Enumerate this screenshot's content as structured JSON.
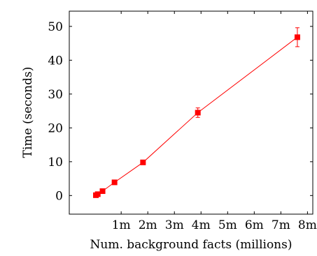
{
  "chart_data": {
    "type": "line",
    "title": "",
    "xlabel": "Num. background facts (millions)",
    "ylabel": "Time (seconds)",
    "xlim": [
      -0.95,
      8.2
    ],
    "ylim": [
      -5.5,
      54.5
    ],
    "x_ticks": [
      {
        "value": 1,
        "label": "1m"
      },
      {
        "value": 2,
        "label": "2m"
      },
      {
        "value": 3,
        "label": "3m"
      },
      {
        "value": 4,
        "label": "4m"
      },
      {
        "value": 5,
        "label": "5m"
      },
      {
        "value": 6,
        "label": "6m"
      },
      {
        "value": 7,
        "label": "7m"
      },
      {
        "value": 8,
        "label": "8m"
      }
    ],
    "y_ticks": [
      {
        "value": 0,
        "label": "0"
      },
      {
        "value": 10,
        "label": "10"
      },
      {
        "value": 20,
        "label": "20"
      },
      {
        "value": 30,
        "label": "30"
      },
      {
        "value": 40,
        "label": "40"
      },
      {
        "value": 50,
        "label": "50"
      }
    ],
    "grid": false,
    "legend": "none",
    "series": [
      {
        "color": "#ff0000",
        "marker": "square",
        "points": [
          {
            "x": 0.05,
            "y": 0.1,
            "err": 0.2
          },
          {
            "x": 0.12,
            "y": 0.4,
            "err": 0.2
          },
          {
            "x": 0.3,
            "y": 1.3,
            "err": 0.2
          },
          {
            "x": 0.75,
            "y": 3.9,
            "err": 0.2
          },
          {
            "x": 1.82,
            "y": 9.8,
            "err": 0.3
          },
          {
            "x": 3.88,
            "y": 24.5,
            "err": 1.4
          },
          {
            "x": 7.62,
            "y": 46.8,
            "err": 2.8
          }
        ]
      }
    ]
  }
}
